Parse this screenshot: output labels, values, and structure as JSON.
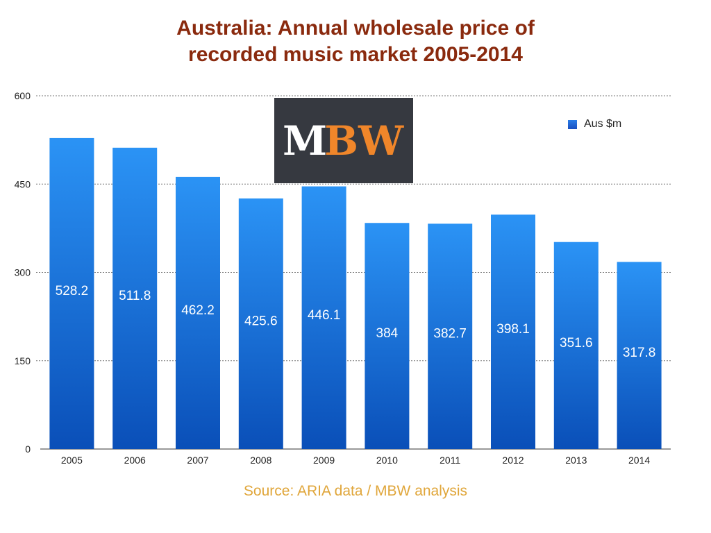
{
  "chart_data": {
    "type": "bar",
    "title": "Australia: Annual wholesale price of recorded music market 2005-2014",
    "title_lines": [
      "Australia: Annual wholesale price of",
      "recorded music market 2005-2014"
    ],
    "categories": [
      "2005",
      "2006",
      "2007",
      "2008",
      "2009",
      "2010",
      "2011",
      "2012",
      "2013",
      "2014"
    ],
    "series": [
      {
        "name": "Aus $m",
        "values": [
          528.2,
          511.8,
          462.2,
          425.6,
          446.1,
          384,
          382.7,
          398.1,
          351.6,
          317.8
        ],
        "labels": [
          "528.2",
          "511.8",
          "462.2",
          "425.6",
          "446.1",
          "384",
          "382.7",
          "398.1",
          "351.6",
          "317.8"
        ]
      }
    ],
    "yticks": [
      0,
      150,
      300,
      450,
      600
    ],
    "ylim": [
      0,
      600
    ],
    "grid": true,
    "legend": "top-right",
    "source": "Source: ARIA data / MBW analysis",
    "colors": {
      "bar_top": "#2b93f5",
      "bar_bottom": "#0a4fb8",
      "title": "#8a2a0e",
      "source": "#e0a63a"
    }
  },
  "logo": {
    "m": "M",
    "bw": "BW"
  }
}
